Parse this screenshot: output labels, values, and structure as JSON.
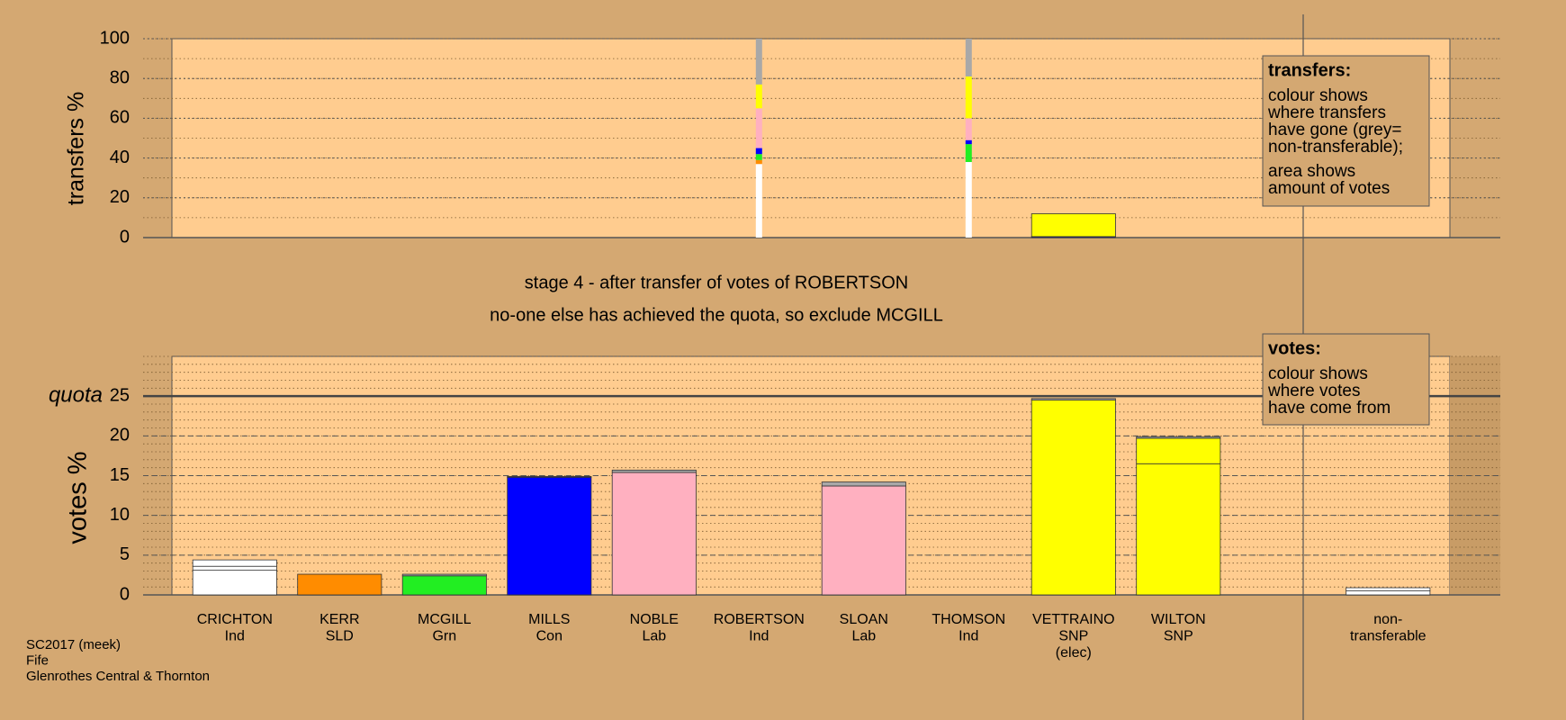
{
  "chart_data": [
    {
      "type": "stacked-bar",
      "ylabel": "transfers %",
      "ylim": [
        0,
        100
      ],
      "yticks": [
        0,
        20,
        40,
        60,
        80,
        100
      ],
      "minor_step": 10,
      "bar_widths": [
        null,
        null,
        null,
        null,
        null,
        0.06,
        null,
        0.06,
        0.8,
        null,
        null,
        null
      ],
      "stacks": [
        [],
        [],
        [],
        [],
        [],
        [
          {
            "value": 37,
            "color": "#ffffff"
          },
          {
            "value": 2,
            "color": "#ff8c00"
          },
          {
            "value": 3,
            "color": "#22ee22"
          },
          {
            "value": 3,
            "color": "#0000ff"
          },
          {
            "value": 20,
            "color": "#ffb0c0"
          },
          {
            "value": 12,
            "color": "#ffff00"
          },
          {
            "value": 23,
            "color": "#a8a8a8"
          }
        ],
        [],
        [
          {
            "value": 38,
            "color": "#ffffff"
          },
          {
            "value": 9,
            "color": "#22ee22"
          },
          {
            "value": 2,
            "color": "#0000ff"
          },
          {
            "value": 11,
            "color": "#ffb0c0"
          },
          {
            "value": 21,
            "color": "#ffff00"
          },
          {
            "value": 19,
            "color": "#a8a8a8"
          }
        ],
        [
          {
            "value": 0.5,
            "color": "#0000ff"
          },
          {
            "value": 11.5,
            "color": "#ffff00"
          }
        ],
        [],
        [],
        []
      ]
    },
    {
      "type": "stacked-bar",
      "ylabel": "votes %",
      "ylim": [
        0,
        30
      ],
      "yticks": [
        0,
        5,
        10,
        15,
        20,
        25
      ],
      "minor_step": 1,
      "quota": {
        "label": "quota",
        "value": 25
      },
      "bar_width": 0.8,
      "categories": [
        [
          "CRICHTON",
          "Ind"
        ],
        [
          "KERR",
          "SLD"
        ],
        [
          "MCGILL",
          "Grn"
        ],
        [
          "MILLS",
          "Con"
        ],
        [
          "NOBLE",
          "Lab"
        ],
        [
          "ROBERTSON",
          "Ind"
        ],
        [
          "SLOAN",
          "Lab"
        ],
        [
          "THOMSON",
          "Ind"
        ],
        [
          "VETTRAINO",
          "SNP",
          "(elec)"
        ],
        [
          "WILTON",
          "SNP"
        ],
        null,
        [
          "non-",
          "transferable"
        ]
      ],
      "stacks": [
        [
          {
            "value": 3.1,
            "color": "#ffffff"
          },
          {
            "value": 0.5,
            "color": "#ffffff"
          },
          {
            "value": 0.8,
            "color": "#ffffff"
          }
        ],
        [
          {
            "value": 2.6,
            "color": "#ff8c00"
          }
        ],
        [
          {
            "value": 2.4,
            "color": "#22ee22"
          },
          {
            "value": 0.2,
            "color": "#a8a8a8"
          }
        ],
        [
          {
            "value": 14.8,
            "color": "#0000ff"
          },
          {
            "value": 0.1,
            "color": "#a8a8a8"
          }
        ],
        [
          {
            "value": 15.4,
            "color": "#ffb0c0"
          },
          {
            "value": 0.3,
            "color": "#a8a8a8"
          }
        ],
        [],
        [
          {
            "value": 13.7,
            "color": "#ffb0c0"
          },
          {
            "value": 0.5,
            "color": "#a8a8a8"
          }
        ],
        [],
        [
          {
            "value": 24.5,
            "color": "#ffff00"
          },
          {
            "value": 0.2,
            "color": "#a8a8a8"
          }
        ],
        [
          {
            "value": 16.5,
            "color": "#ffff00"
          },
          {
            "value": 3.2,
            "color": "#ffff00"
          },
          {
            "value": 0.2,
            "color": "#a8a8a8"
          }
        ],
        [],
        [
          {
            "value": 0.5,
            "color": "#ffffff"
          },
          {
            "value": 0.4,
            "color": "#ffffff"
          }
        ]
      ]
    }
  ],
  "stage_title": "stage 4 - after transfer of votes of ROBERTSON",
  "stage_note": "no-one else has achieved the quota, so exclude MCGILL",
  "notes": {
    "transfers": {
      "heading": "transfers:",
      "lines": [
        "colour shows",
        "where transfers",
        "have gone (grey=",
        "non-transferable);",
        "area shows",
        "amount of votes"
      ]
    },
    "votes": {
      "heading": "votes:",
      "lines": [
        "colour shows",
        "where votes",
        "have come from"
      ]
    }
  },
  "footer": [
    "SC2017 (meek)",
    "Fife",
    "Glenrothes Central & Thornton"
  ]
}
